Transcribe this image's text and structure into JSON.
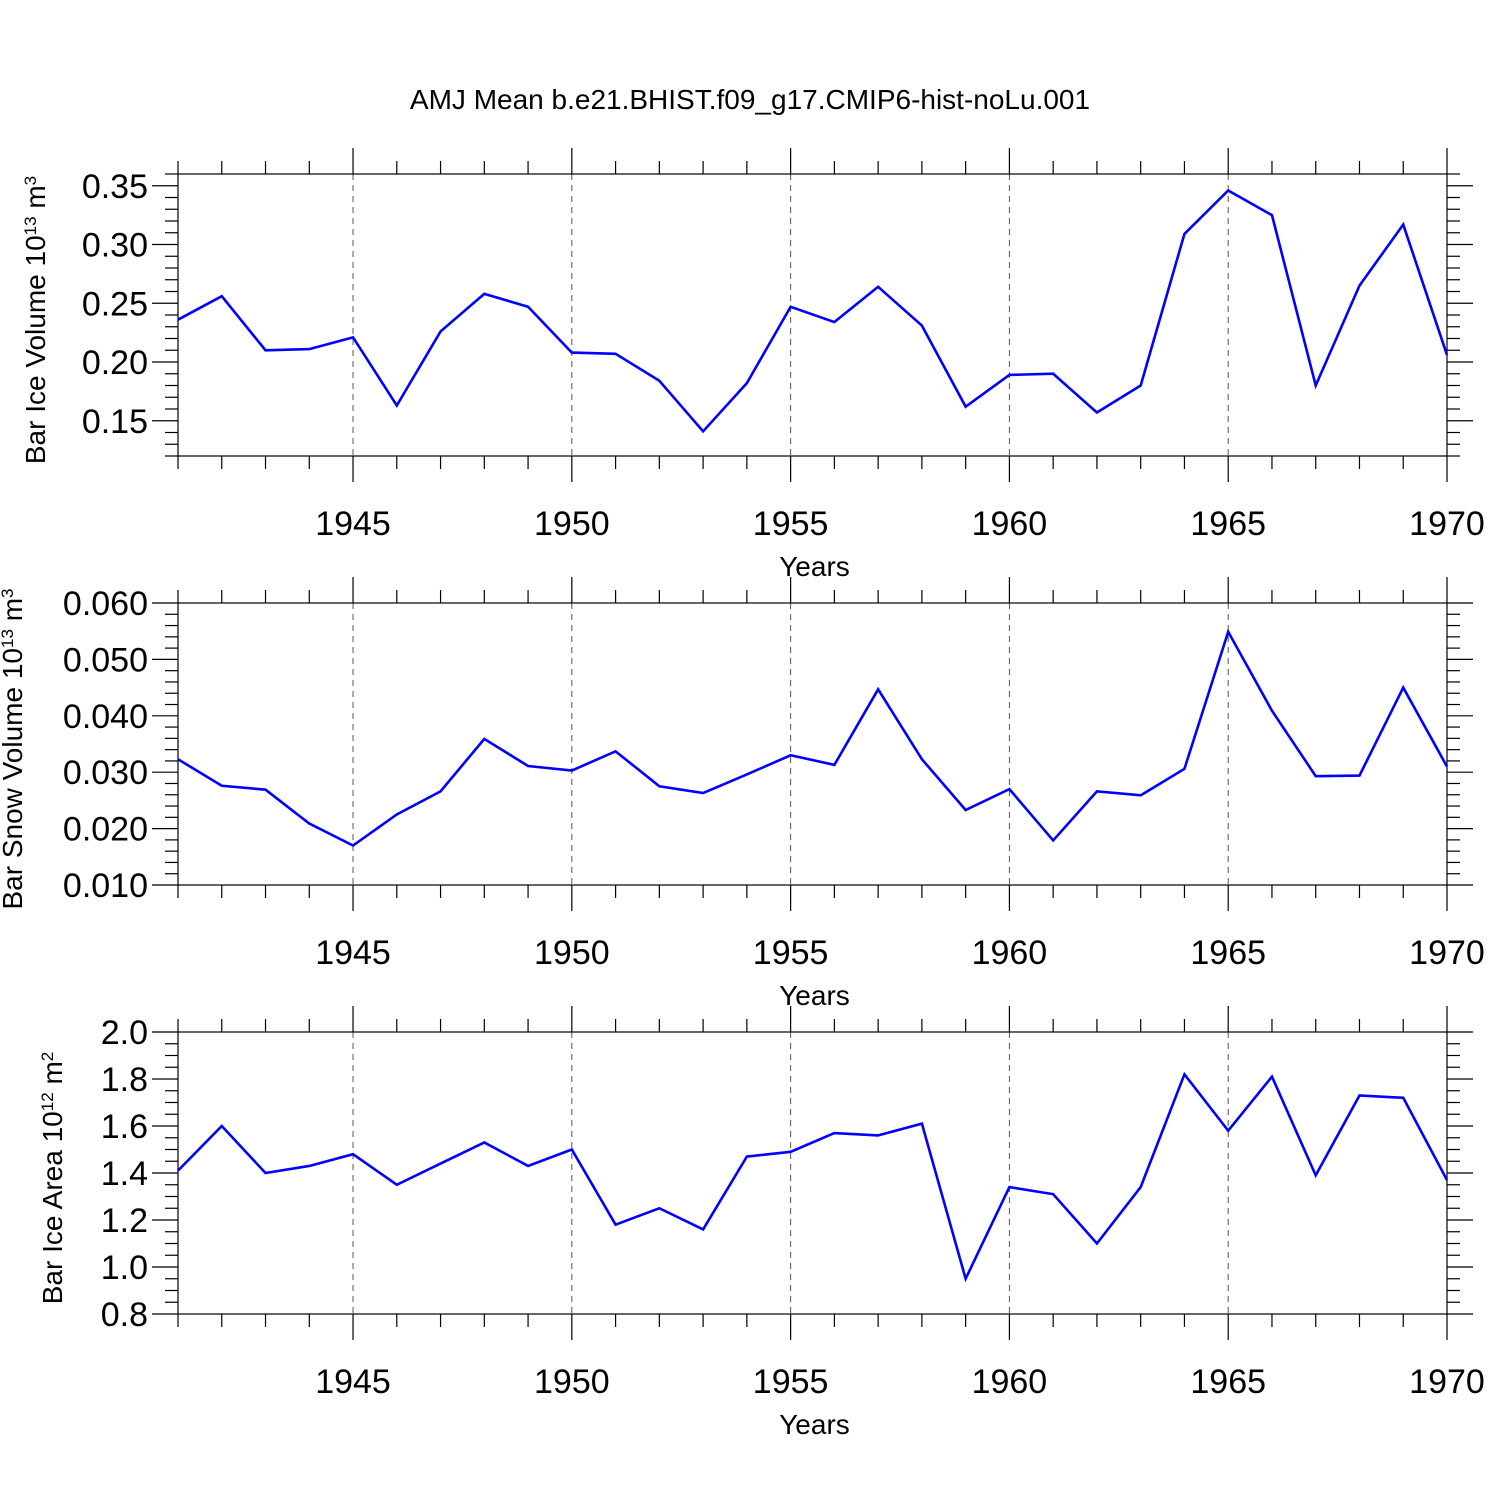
{
  "title": "AMJ Mean b.e21.BHIST.f09_g17.CMIP6-hist-noLu.001",
  "chart_data": [
    {
      "type": "line",
      "xlabel": "Years",
      "ylabel": {
        "base": "Bar Ice Volume 10",
        "exp": "13",
        "unit": " m",
        "unit_exp": "3"
      },
      "xlim": [
        1941,
        1970
      ],
      "ylim": [
        0.12,
        0.36
      ],
      "yticks": [
        0.15,
        0.2,
        0.25,
        0.3,
        0.35
      ],
      "ytick_labels": [
        "0.15",
        "0.20",
        "0.25",
        "0.30",
        "0.35"
      ],
      "xticks": [
        1945,
        1950,
        1955,
        1960,
        1965,
        1970
      ],
      "xtick_labels": [
        "1945",
        "1950",
        "1955",
        "1960",
        "1965",
        "1970"
      ],
      "x": [
        1941,
        1942,
        1943,
        1944,
        1945,
        1946,
        1947,
        1948,
        1949,
        1950,
        1951,
        1952,
        1953,
        1954,
        1955,
        1956,
        1957,
        1958,
        1959,
        1960,
        1961,
        1962,
        1963,
        1964,
        1965,
        1966,
        1967,
        1968,
        1969,
        1970
      ],
      "values": [
        0.236,
        0.256,
        0.21,
        0.211,
        0.221,
        0.163,
        0.226,
        0.258,
        0.247,
        0.208,
        0.207,
        0.184,
        0.141,
        0.182,
        0.247,
        0.234,
        0.264,
        0.231,
        0.162,
        0.189,
        0.19,
        0.157,
        0.18,
        0.309,
        0.346,
        0.325,
        0.18,
        0.265,
        0.317,
        0.206
      ],
      "color": "#0000ff",
      "grid": "vertical dashed at labeled years"
    },
    {
      "type": "line",
      "xlabel": "Years",
      "ylabel": {
        "base": "Bar Snow Volume 10",
        "exp": "13",
        "unit": " m",
        "unit_exp": "3"
      },
      "xlim": [
        1941,
        1970
      ],
      "ylim": [
        0.01,
        0.06
      ],
      "yticks": [
        0.01,
        0.02,
        0.03,
        0.04,
        0.05,
        0.06
      ],
      "ytick_labels": [
        "0.010",
        "0.020",
        "0.030",
        "0.040",
        "0.050",
        "0.060"
      ],
      "xticks": [
        1945,
        1950,
        1955,
        1960,
        1965,
        1970
      ],
      "xtick_labels": [
        "1945",
        "1950",
        "1955",
        "1960",
        "1965",
        "1970"
      ],
      "x": [
        1941,
        1942,
        1943,
        1944,
        1945,
        1946,
        1947,
        1948,
        1949,
        1950,
        1951,
        1952,
        1953,
        1954,
        1955,
        1956,
        1957,
        1958,
        1959,
        1960,
        1961,
        1962,
        1963,
        1964,
        1965,
        1966,
        1967,
        1968,
        1969,
        1970
      ],
      "values": [
        0.0323,
        0.0276,
        0.0269,
        0.0209,
        0.017,
        0.0225,
        0.0266,
        0.0359,
        0.0311,
        0.0303,
        0.0337,
        0.0275,
        0.0263,
        0.0296,
        0.033,
        0.0313,
        0.0447,
        0.0323,
        0.0233,
        0.027,
        0.0179,
        0.0266,
        0.0259,
        0.0306,
        0.0549,
        0.0409,
        0.0293,
        0.0294,
        0.045,
        0.031
      ],
      "color": "#0000ff",
      "grid": "vertical dashed at labeled years"
    },
    {
      "type": "line",
      "xlabel": "Years",
      "ylabel": {
        "base": "Bar Ice Area 10",
        "exp": "12",
        "unit": " m",
        "unit_exp": "2"
      },
      "xlim": [
        1941,
        1970
      ],
      "ylim": [
        0.8,
        2.0
      ],
      "yticks": [
        0.8,
        1.0,
        1.2,
        1.4,
        1.6,
        1.8,
        2.0
      ],
      "ytick_labels": [
        "0.8",
        "1.0",
        "1.2",
        "1.4",
        "1.6",
        "1.8",
        "2.0"
      ],
      "xticks": [
        1945,
        1950,
        1955,
        1960,
        1965,
        1970
      ],
      "xtick_labels": [
        "1945",
        "1950",
        "1955",
        "1960",
        "1965",
        "1970"
      ],
      "x": [
        1941,
        1942,
        1943,
        1944,
        1945,
        1946,
        1947,
        1948,
        1949,
        1950,
        1951,
        1952,
        1953,
        1954,
        1955,
        1956,
        1957,
        1958,
        1959,
        1960,
        1961,
        1962,
        1963,
        1964,
        1965,
        1966,
        1967,
        1968,
        1969,
        1970
      ],
      "values": [
        1.41,
        1.6,
        1.4,
        1.43,
        1.48,
        1.35,
        1.44,
        1.53,
        1.43,
        1.5,
        1.18,
        1.25,
        1.16,
        1.47,
        1.49,
        1.57,
        1.56,
        1.61,
        0.95,
        1.34,
        1.31,
        1.1,
        1.34,
        1.82,
        1.58,
        1.81,
        1.39,
        1.73,
        1.72,
        1.37
      ],
      "color": "#0000ff",
      "grid": "vertical dashed at labeled years"
    }
  ]
}
